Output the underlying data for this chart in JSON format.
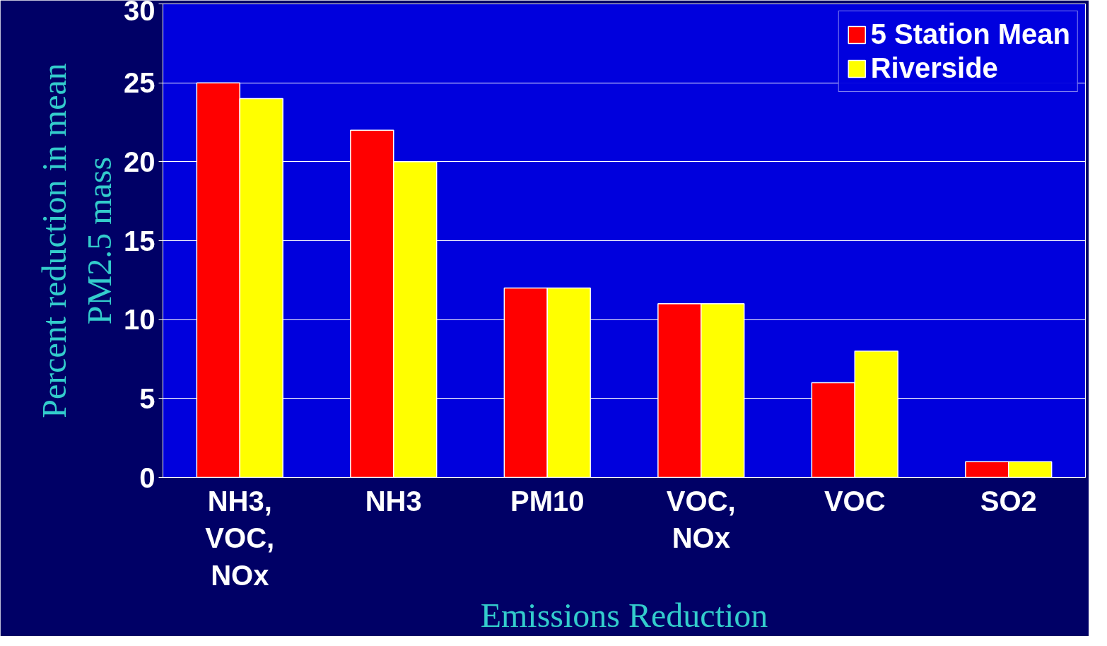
{
  "chart_data": {
    "type": "bar",
    "xlabel": "Emissions Reduction",
    "ylabel": "Percent reduction in mean\nPM2.5 mass",
    "categories": [
      "NH3,\nVOC,\nNOx",
      "NH3",
      "PM10",
      "VOC,\nNOx",
      "VOC",
      "SO2"
    ],
    "series": [
      {
        "name": "5 Station Mean",
        "color": "#ff0000",
        "values": [
          25,
          22,
          12,
          11,
          6,
          1
        ]
      },
      {
        "name": "Riverside",
        "color": "#ffff00",
        "values": [
          24,
          20,
          12,
          11,
          8,
          1
        ]
      }
    ],
    "ylim": [
      0,
      30
    ],
    "yticks": [
      0,
      5,
      10,
      15,
      20,
      25,
      30
    ],
    "grid": "y",
    "legend": "top right"
  }
}
